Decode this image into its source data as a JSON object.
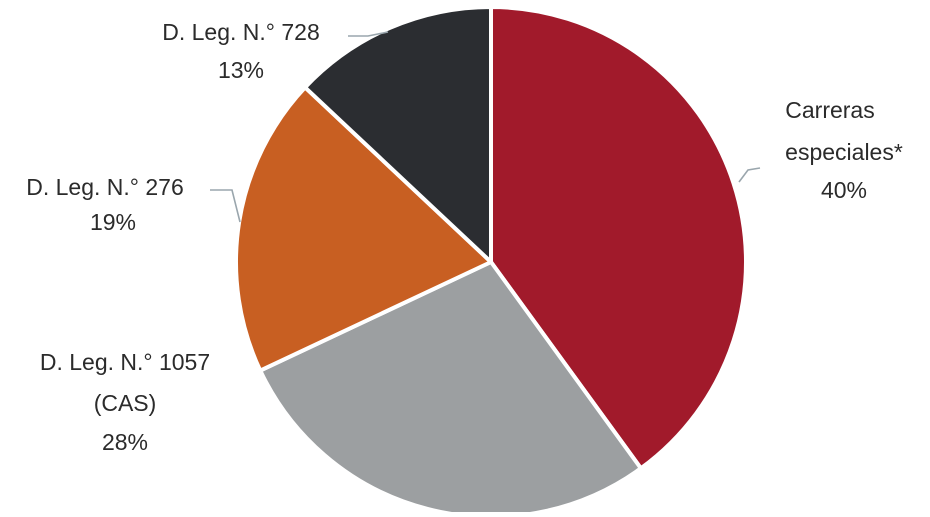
{
  "chart_data": {
    "type": "pie",
    "slices": [
      {
        "label_lines": [
          "Carreras",
          "especiales*"
        ],
        "value_label": "40%",
        "value": 40,
        "color": "#a11a2b"
      },
      {
        "label_lines": [
          "D. Leg. N.° 1057",
          "(CAS)"
        ],
        "value_label": "28%",
        "value": 28,
        "color": "#9c9fa1"
      },
      {
        "label_lines": [
          "D. Leg. N.° 276"
        ],
        "value_label": "19%",
        "value": 19,
        "color": "#c85f22"
      },
      {
        "label_lines": [
          "D. Leg. N.° 728"
        ],
        "value_label": "13%",
        "value": 13,
        "color": "#2b2d31"
      }
    ],
    "start": "12 o'clock",
    "direction": "clockwise",
    "legend": "none (labels with leader lines)"
  }
}
